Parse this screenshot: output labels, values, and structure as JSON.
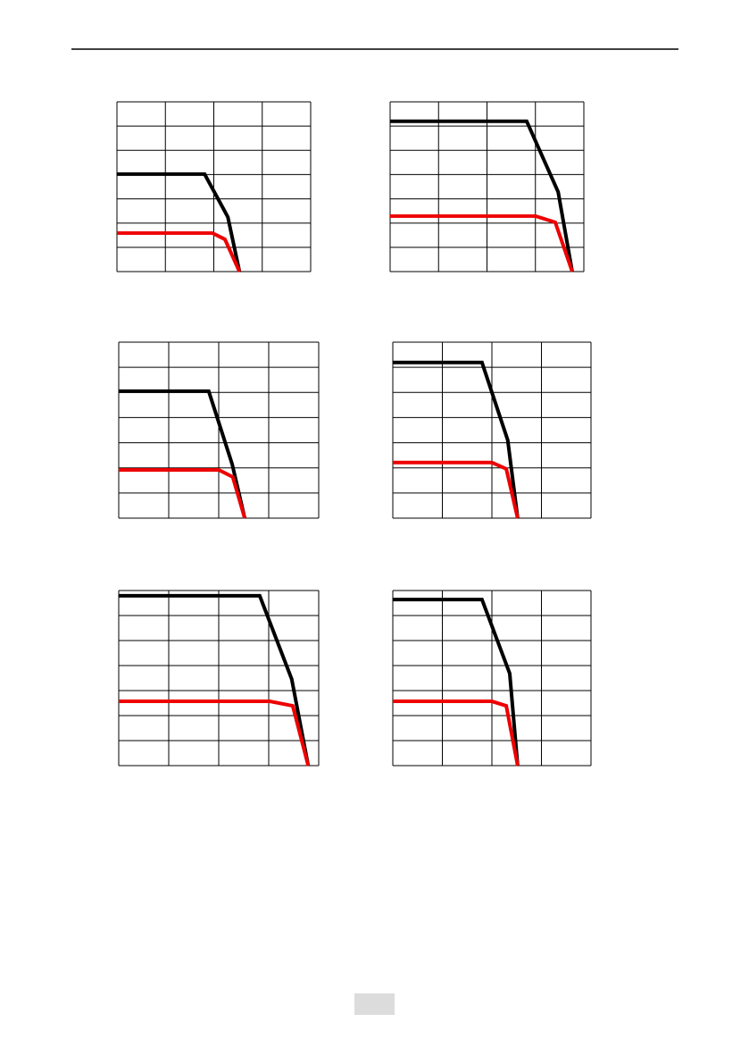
{
  "chart_data": [
    {
      "type": "line",
      "xlim": [
        0,
        4
      ],
      "ylim": [
        0,
        7
      ],
      "xticks": [
        0,
        1,
        2,
        3,
        4
      ],
      "yticks": [
        0,
        1,
        2,
        3,
        4,
        5,
        6,
        7
      ],
      "grid": true,
      "series": [
        {
          "color": "#000000",
          "x": [
            0,
            1.81,
            2.29,
            2.53
          ],
          "values": [
            4.02,
            4.02,
            2.25,
            0
          ]
        },
        {
          "color": "#ee0000",
          "x": [
            0,
            1.97,
            2.23,
            2.53
          ],
          "values": [
            1.59,
            1.59,
            1.33,
            0
          ]
        }
      ]
    },
    {
      "type": "line",
      "xlim": [
        0,
        4
      ],
      "ylim": [
        0,
        7
      ],
      "xticks": [
        0,
        1,
        2,
        3,
        4
      ],
      "yticks": [
        0,
        1,
        2,
        3,
        4,
        5,
        6,
        7
      ],
      "grid": true,
      "series": [
        {
          "color": "#000000",
          "x": [
            0,
            2.82,
            3.47,
            3.76
          ],
          "values": [
            6.2,
            6.2,
            3.28,
            0
          ]
        },
        {
          "color": "#ee0000",
          "x": [
            0,
            3.0,
            3.41,
            3.76
          ],
          "values": [
            2.29,
            2.29,
            2.03,
            0
          ]
        }
      ]
    },
    {
      "type": "line",
      "xlim": [
        0,
        4
      ],
      "ylim": [
        0,
        7
      ],
      "xticks": [
        0,
        1,
        2,
        3,
        4
      ],
      "yticks": [
        0,
        1,
        2,
        3,
        4,
        5,
        6,
        7
      ],
      "grid": true,
      "series": [
        {
          "color": "#000000",
          "x": [
            0,
            1.8,
            2.27,
            2.52
          ],
          "values": [
            5.05,
            5.05,
            2.14,
            0
          ]
        },
        {
          "color": "#ee0000",
          "x": [
            0,
            2.0,
            2.28,
            2.52
          ],
          "values": [
            1.92,
            1.92,
            1.64,
            0
          ]
        }
      ]
    },
    {
      "type": "line",
      "xlim": [
        0,
        4
      ],
      "ylim": [
        0,
        7
      ],
      "xticks": [
        0,
        1,
        2,
        3,
        4
      ],
      "yticks": [
        0,
        1,
        2,
        3,
        4,
        5,
        6,
        7
      ],
      "grid": true,
      "series": [
        {
          "color": "#000000",
          "x": [
            0,
            1.8,
            2.32,
            2.52
          ],
          "values": [
            6.19,
            6.19,
            3.1,
            0
          ]
        },
        {
          "color": "#ee0000",
          "x": [
            0,
            2.0,
            2.29,
            2.52
          ],
          "values": [
            2.21,
            2.21,
            1.96,
            0
          ]
        }
      ]
    },
    {
      "type": "line",
      "xlim": [
        0,
        4
      ],
      "ylim": [
        0,
        7
      ],
      "xticks": [
        0,
        1,
        2,
        3,
        4
      ],
      "yticks": [
        0,
        1,
        2,
        3,
        4,
        5,
        6,
        7
      ],
      "grid": true,
      "series": [
        {
          "color": "#000000",
          "x": [
            0,
            2.82,
            3.46,
            3.79
          ],
          "values": [
            6.79,
            6.79,
            3.46,
            0
          ]
        },
        {
          "color": "#ee0000",
          "x": [
            0,
            3.02,
            3.48,
            3.79
          ],
          "values": [
            2.57,
            2.57,
            2.39,
            0
          ]
        }
      ]
    },
    {
      "type": "line",
      "xlim": [
        0,
        4
      ],
      "ylim": [
        0,
        7
      ],
      "xticks": [
        0,
        1,
        2,
        3,
        4
      ],
      "yticks": [
        0,
        1,
        2,
        3,
        4,
        5,
        6,
        7
      ],
      "grid": true,
      "series": [
        {
          "color": "#000000",
          "x": [
            0,
            1.8,
            2.36,
            2.52
          ],
          "values": [
            6.64,
            6.64,
            3.68,
            0
          ]
        },
        {
          "color": "#ee0000",
          "x": [
            0,
            2.0,
            2.29,
            2.52
          ],
          "values": [
            2.57,
            2.57,
            2.39,
            0
          ]
        }
      ]
    }
  ]
}
